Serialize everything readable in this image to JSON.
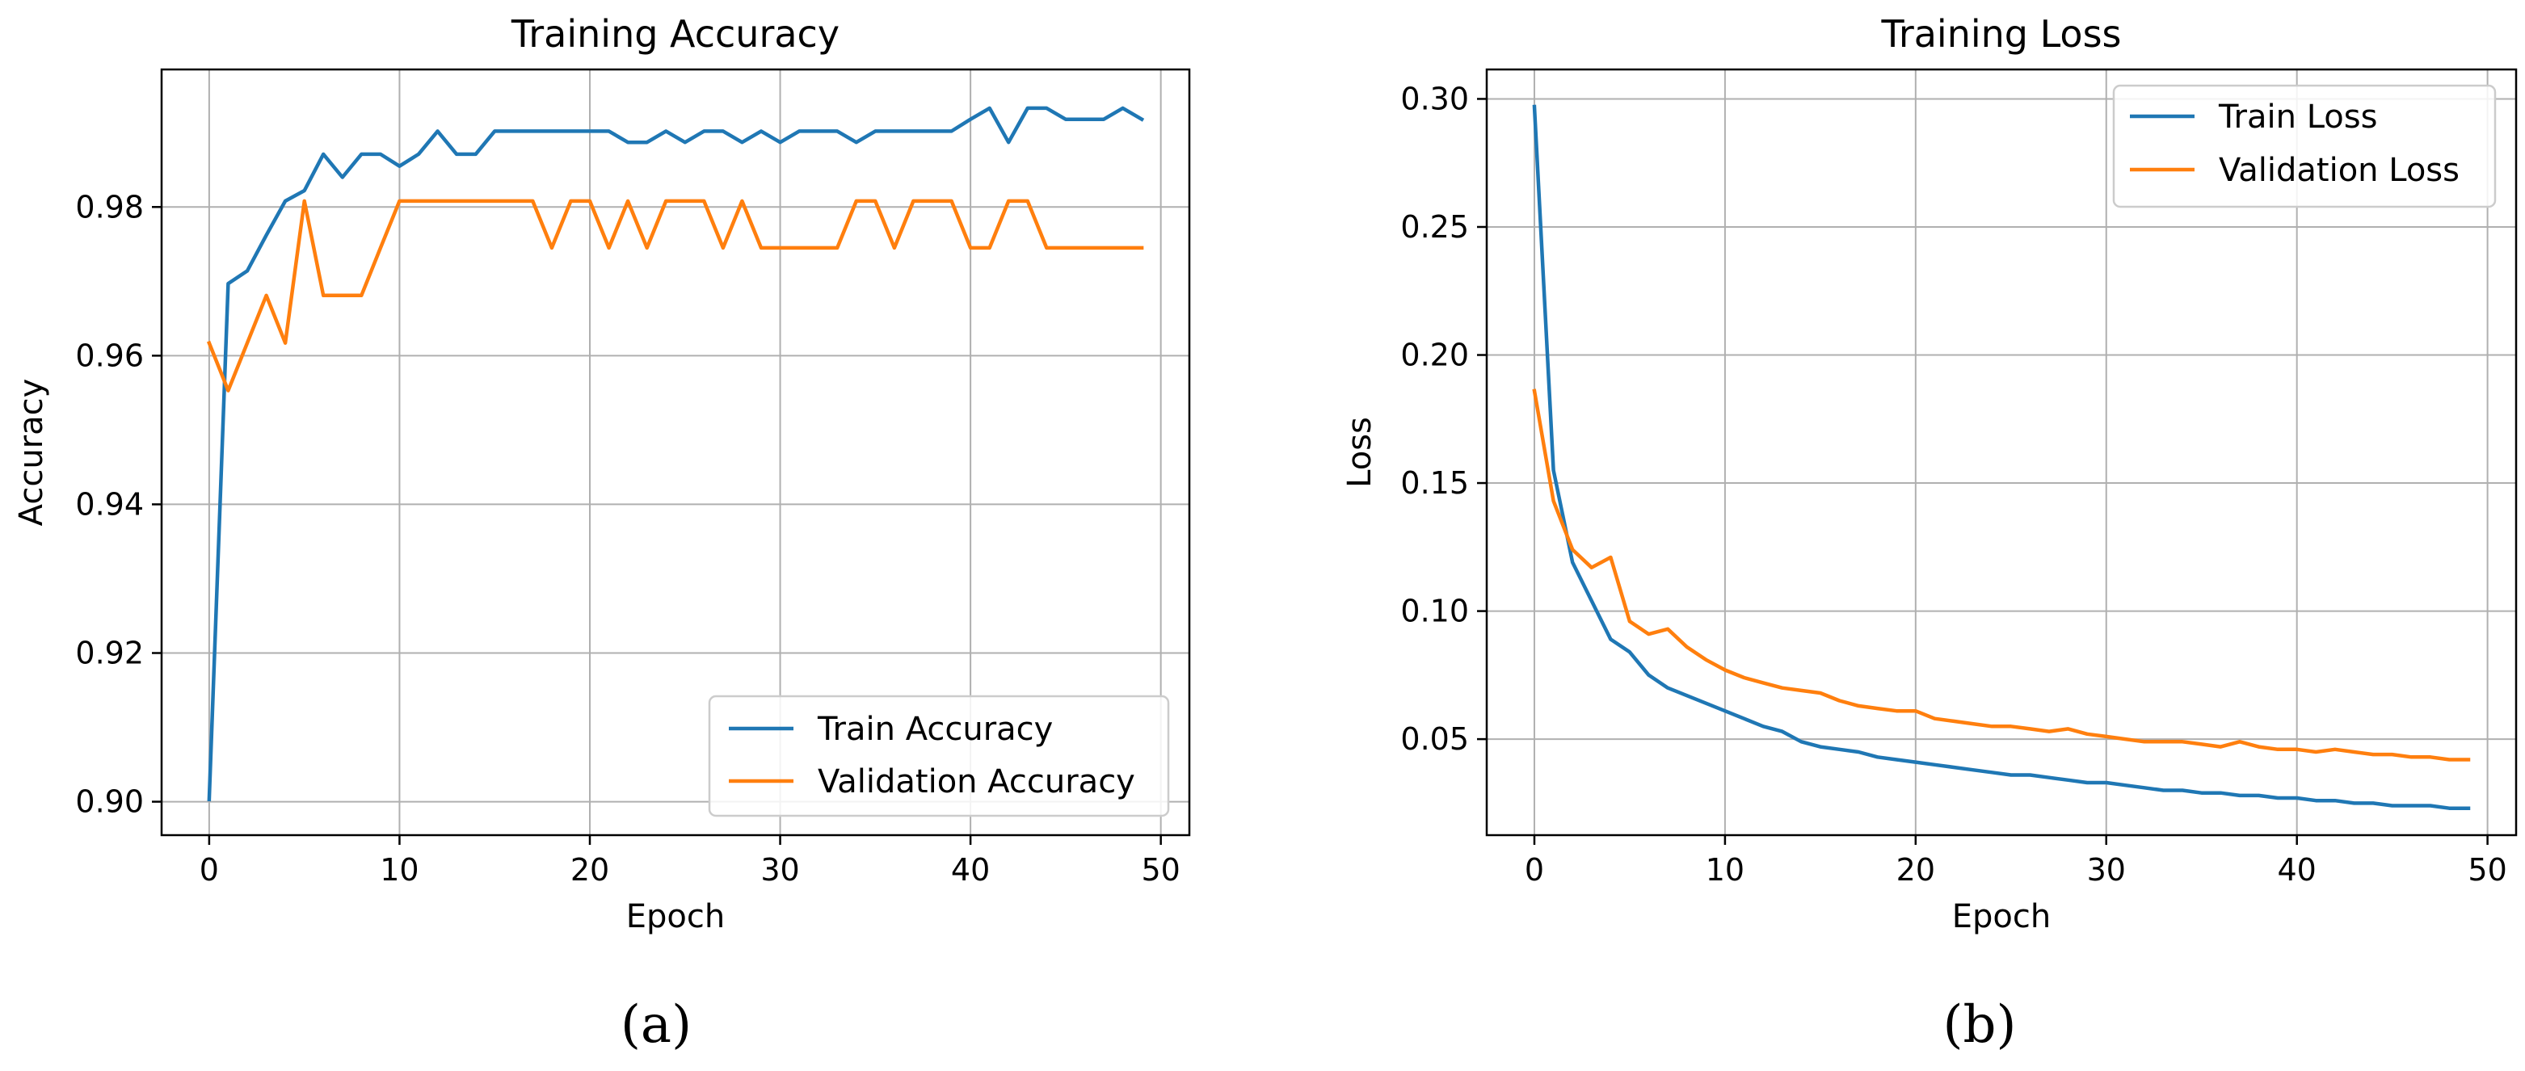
{
  "chart_data": [
    {
      "type": "line",
      "title": "Training Accuracy",
      "xlabel": "Epoch",
      "ylabel": "Accuracy",
      "xlim": [
        -2.5,
        51.5
      ],
      "ylim": [
        0.8955,
        0.9985
      ],
      "xticks": [
        0,
        10,
        20,
        30,
        40,
        50
      ],
      "yticks": [
        0.9,
        0.92,
        0.94,
        0.96,
        0.98
      ],
      "ytick_labels": [
        "0.90",
        "0.92",
        "0.94",
        "0.96",
        "0.98"
      ],
      "grid": true,
      "legend_position": "bottom-right",
      "caption": "(a)",
      "series": [
        {
          "name": "Train Accuracy",
          "color": "#1f77b4",
          "values": [
            0.9003,
            0.9697,
            0.9714,
            0.9762,
            0.9808,
            0.9822,
            0.9871,
            0.984,
            0.9871,
            0.9871,
            0.9855,
            0.9871,
            0.9902,
            0.9871,
            0.9871,
            0.9902,
            0.9902,
            0.9902,
            0.9902,
            0.9902,
            0.9902,
            0.9902,
            0.9887,
            0.9887,
            0.9902,
            0.9887,
            0.9902,
            0.9902,
            0.9887,
            0.9902,
            0.9887,
            0.9902,
            0.9902,
            0.9902,
            0.9887,
            0.9902,
            0.9902,
            0.9902,
            0.9902,
            0.9902,
            0.9918,
            0.9933,
            0.9887,
            0.9933,
            0.9933,
            0.9918,
            0.9918,
            0.9918,
            0.9933,
            0.9918
          ]
        },
        {
          "name": "Validation Accuracy",
          "color": "#ff7f0e",
          "values": [
            0.9617,
            0.9553,
            0.9617,
            0.9681,
            0.9617,
            0.9808,
            0.9681,
            0.9681,
            0.9681,
            0.9745,
            0.9808,
            0.9808,
            0.9808,
            0.9808,
            0.9808,
            0.9808,
            0.9808,
            0.9808,
            0.9745,
            0.9808,
            0.9808,
            0.9745,
            0.9808,
            0.9745,
            0.9808,
            0.9808,
            0.9808,
            0.9745,
            0.9808,
            0.9745,
            0.9745,
            0.9745,
            0.9745,
            0.9745,
            0.9808,
            0.9808,
            0.9745,
            0.9808,
            0.9808,
            0.9808,
            0.9745,
            0.9745,
            0.9808,
            0.9808,
            0.9745,
            0.9745,
            0.9745,
            0.9745,
            0.9745,
            0.9745
          ]
        }
      ]
    },
    {
      "type": "line",
      "title": "Training Loss",
      "xlabel": "Epoch",
      "ylabel": "Loss",
      "xlim": [
        -2.5,
        51.5
      ],
      "ylim": [
        0.0125,
        0.3115
      ],
      "xticks": [
        0,
        10,
        20,
        30,
        40,
        50
      ],
      "yticks": [
        0.05,
        0.1,
        0.15,
        0.2,
        0.25,
        0.3
      ],
      "ytick_labels": [
        "0.05",
        "0.10",
        "0.15",
        "0.20",
        "0.25",
        "0.30"
      ],
      "grid": true,
      "legend_position": "top-right",
      "caption": "(b)",
      "series": [
        {
          "name": "Train Loss",
          "color": "#1f77b4",
          "values": [
            0.297,
            0.155,
            0.119,
            0.104,
            0.089,
            0.084,
            0.075,
            0.07,
            0.067,
            0.064,
            0.061,
            0.058,
            0.055,
            0.053,
            0.049,
            0.047,
            0.046,
            0.045,
            0.043,
            0.042,
            0.041,
            0.04,
            0.039,
            0.038,
            0.037,
            0.036,
            0.036,
            0.035,
            0.034,
            0.033,
            0.033,
            0.032,
            0.031,
            0.03,
            0.03,
            0.029,
            0.029,
            0.028,
            0.028,
            0.027,
            0.027,
            0.026,
            0.026,
            0.025,
            0.025,
            0.024,
            0.024,
            0.024,
            0.023,
            0.023
          ]
        },
        {
          "name": "Validation Loss",
          "color": "#ff7f0e",
          "values": [
            0.186,
            0.143,
            0.124,
            0.117,
            0.121,
            0.096,
            0.091,
            0.093,
            0.086,
            0.081,
            0.077,
            0.074,
            0.072,
            0.07,
            0.069,
            0.068,
            0.065,
            0.063,
            0.062,
            0.061,
            0.061,
            0.058,
            0.057,
            0.056,
            0.055,
            0.055,
            0.054,
            0.053,
            0.054,
            0.052,
            0.051,
            0.05,
            0.049,
            0.049,
            0.049,
            0.048,
            0.047,
            0.049,
            0.047,
            0.046,
            0.046,
            0.045,
            0.046,
            0.045,
            0.044,
            0.044,
            0.043,
            0.043,
            0.042,
            0.042
          ]
        }
      ]
    }
  ]
}
